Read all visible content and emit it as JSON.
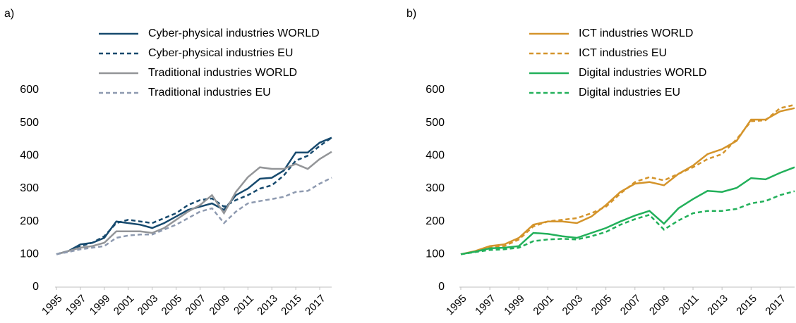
{
  "chart_data": [
    {
      "type": "line",
      "label": "a)",
      "x": [
        1995,
        1996,
        1997,
        1998,
        1999,
        2000,
        2001,
        2002,
        2003,
        2004,
        2005,
        2006,
        2007,
        2008,
        2009,
        2010,
        2011,
        2012,
        2013,
        2014,
        2015,
        2016,
        2017,
        2018
      ],
      "xlim": [
        1995,
        2018
      ],
      "xticks": [
        1995,
        1997,
        1999,
        2001,
        2003,
        2005,
        2007,
        2009,
        2011,
        2013,
        2015,
        2017
      ],
      "ylim": [
        0,
        600
      ],
      "yticks": [
        0,
        100,
        200,
        300,
        400,
        500,
        600
      ],
      "grid": false,
      "series": [
        {
          "name": "Cyber-physical industries WORLD",
          "color": "#174a6e",
          "style": "solid",
          "values": [
            100,
            110,
            130,
            135,
            150,
            200,
            195,
            190,
            180,
            195,
            215,
            235,
            245,
            255,
            235,
            280,
            300,
            330,
            333,
            355,
            410,
            410,
            440,
            455
          ]
        },
        {
          "name": "Cyber-physical industries EU",
          "color": "#174a6e",
          "style": "dashed",
          "values": [
            100,
            110,
            125,
            135,
            155,
            195,
            205,
            200,
            195,
            210,
            225,
            250,
            265,
            270,
            245,
            265,
            280,
            300,
            310,
            340,
            385,
            400,
            430,
            455
          ]
        },
        {
          "name": "Traditional industries WORLD",
          "color": "#939598",
          "style": "solid",
          "values": [
            100,
            110,
            120,
            125,
            135,
            170,
            170,
            170,
            165,
            180,
            205,
            230,
            250,
            280,
            225,
            290,
            335,
            365,
            360,
            360,
            375,
            360,
            390,
            412
          ]
        },
        {
          "name": "Traditional industries EU",
          "color": "#8e9ab0",
          "style": "dashed",
          "values": [
            100,
            107,
            115,
            120,
            125,
            150,
            157,
            160,
            160,
            175,
            190,
            210,
            230,
            240,
            195,
            230,
            255,
            262,
            268,
            275,
            290,
            293,
            315,
            333
          ]
        }
      ]
    },
    {
      "type": "line",
      "label": "b)",
      "x": [
        1995,
        1996,
        1997,
        1998,
        1999,
        2000,
        2001,
        2002,
        2003,
        2004,
        2005,
        2006,
        2007,
        2008,
        2009,
        2010,
        2011,
        2012,
        2013,
        2014,
        2015,
        2016,
        2017,
        2018
      ],
      "xlim": [
        1995,
        2018
      ],
      "xticks": [
        1995,
        1997,
        1999,
        2001,
        2003,
        2005,
        2007,
        2009,
        2011,
        2013,
        2015,
        2017
      ],
      "ylim": [
        0,
        600
      ],
      "yticks": [
        0,
        100,
        200,
        300,
        400,
        500,
        600
      ],
      "grid": false,
      "series": [
        {
          "name": "ICT industries WORLD",
          "color": "#d4942b",
          "style": "solid",
          "values": [
            100,
            110,
            125,
            130,
            150,
            190,
            200,
            200,
            195,
            215,
            250,
            290,
            315,
            320,
            310,
            345,
            370,
            405,
            420,
            445,
            510,
            510,
            535,
            545
          ]
        },
        {
          "name": "ICT industries EU",
          "color": "#d4942b",
          "style": "dashed",
          "values": [
            100,
            108,
            120,
            125,
            145,
            185,
            200,
            205,
            210,
            225,
            245,
            285,
            320,
            335,
            325,
            345,
            365,
            390,
            405,
            450,
            505,
            508,
            545,
            555
          ]
        },
        {
          "name": "Digital industries WORLD",
          "color": "#22b05a",
          "style": "solid",
          "values": [
            100,
            108,
            118,
            120,
            125,
            165,
            162,
            155,
            150,
            165,
            180,
            200,
            218,
            232,
            193,
            240,
            268,
            293,
            290,
            302,
            332,
            328,
            348,
            365
          ]
        },
        {
          "name": "Digital industries EU",
          "color": "#22b05a",
          "style": "dashed",
          "values": [
            100,
            107,
            113,
            115,
            120,
            140,
            145,
            147,
            145,
            155,
            168,
            190,
            207,
            220,
            175,
            203,
            225,
            232,
            232,
            238,
            255,
            262,
            280,
            292
          ]
        }
      ]
    }
  ]
}
